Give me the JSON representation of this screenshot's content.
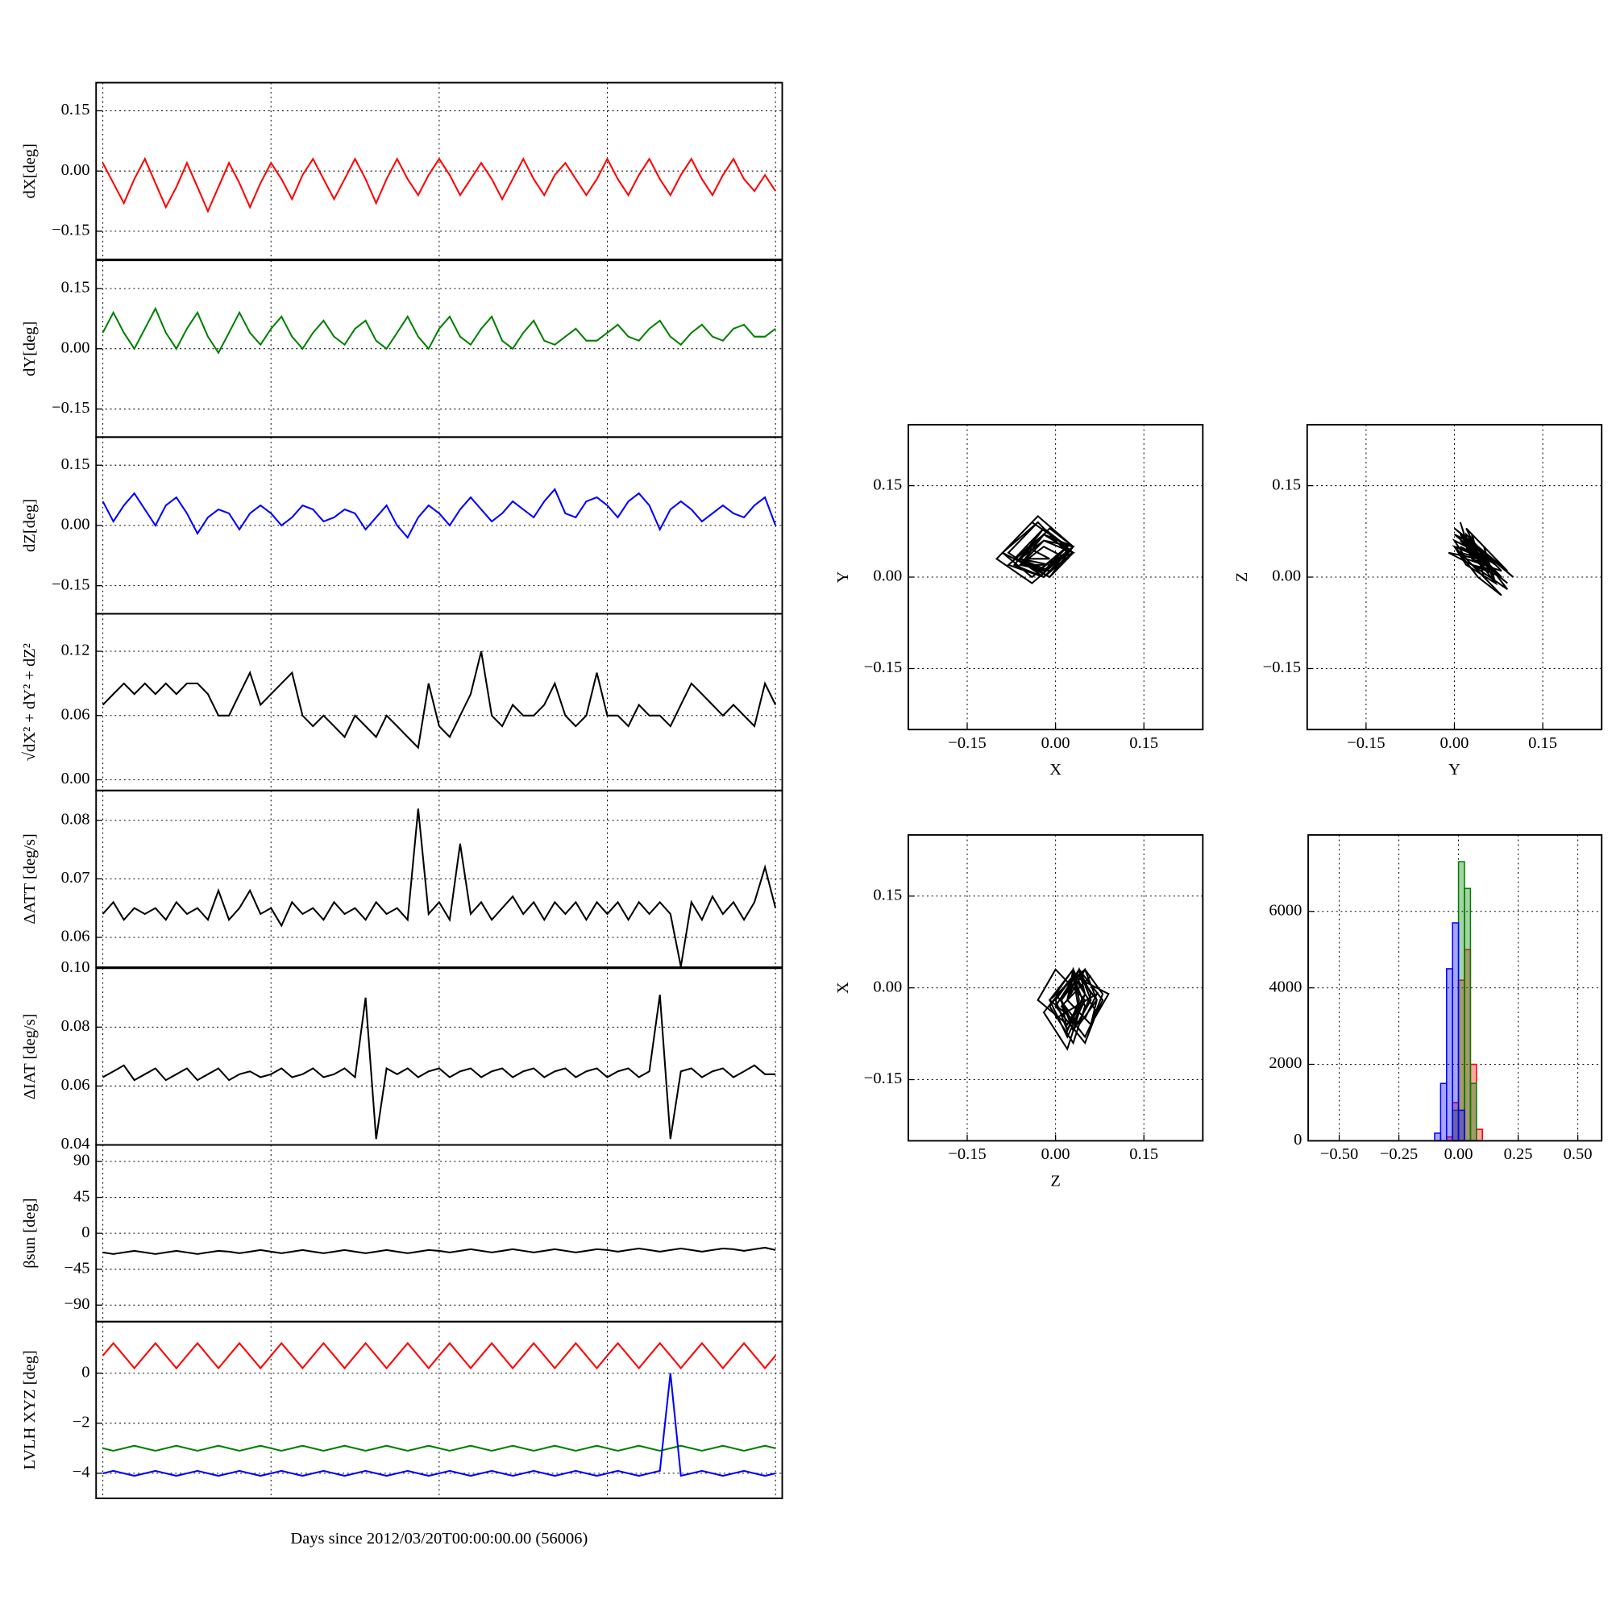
{
  "chart_data": [
    {
      "type": "line",
      "ylabel": "dX[deg]",
      "ylim": [
        -0.22,
        0.22
      ],
      "yticks": [
        0.15,
        {
          "value": 0,
          "label": "0.00"
        },
        {
          "value": -0.15,
          "label": "−0.15"
        }
      ],
      "grid": true,
      "xlim": [
        -0.04,
        4.04
      ],
      "xgrid": [
        0,
        1,
        2,
        3,
        4
      ],
      "x": [
        0,
        0.0625,
        0.125,
        0.1875,
        0.25,
        0.3125,
        0.375,
        0.4375,
        0.5,
        0.5625,
        0.625,
        0.6875,
        0.75,
        0.8125,
        0.875,
        0.9375,
        1,
        1.0625,
        1.125,
        1.1875,
        1.25,
        1.3125,
        1.375,
        1.4375,
        1.5,
        1.5625,
        1.625,
        1.6875,
        1.75,
        1.8125,
        1.875,
        1.9375,
        2,
        2.0625,
        2.125,
        2.1875,
        2.25,
        2.3125,
        2.375,
        2.4375,
        2.5,
        2.5625,
        2.625,
        2.6875,
        2.75,
        2.8125,
        2.875,
        2.9375,
        3,
        3.0625,
        3.125,
        3.1875,
        3.25,
        3.3125,
        3.375,
        3.4375,
        3.5,
        3.5625,
        3.625,
        3.6875,
        3.75,
        3.8125,
        3.875,
        3.9375,
        4
      ],
      "series": [
        {
          "color": "#ff0000",
          "values": [
            0.02,
            -0.03,
            -0.08,
            -0.02,
            0.03,
            -0.03,
            -0.09,
            -0.04,
            0.02,
            -0.04,
            -0.1,
            -0.04,
            0.02,
            -0.03,
            -0.09,
            -0.03,
            0.02,
            -0.02,
            -0.07,
            -0.01,
            0.03,
            -0.02,
            -0.07,
            -0.02,
            0.03,
            -0.02,
            -0.08,
            -0.02,
            0.03,
            -0.02,
            -0.06,
            -0.01,
            0.03,
            -0.01,
            -0.06,
            -0.02,
            0.02,
            -0.02,
            -0.07,
            -0.02,
            0.03,
            -0.02,
            -0.06,
            -0.01,
            0.02,
            -0.02,
            -0.06,
            -0.02,
            0.03,
            -0.02,
            -0.06,
            -0.01,
            0.03,
            -0.02,
            -0.06,
            -0.01,
            0.03,
            -0.02,
            -0.06,
            -0.01,
            0.03,
            -0.02,
            -0.05,
            -0.01,
            -0.05
          ]
        }
      ]
    },
    {
      "type": "line",
      "ylabel": "dY[deg]",
      "ylim": [
        -0.22,
        0.22
      ],
      "yticks": [
        0.15,
        {
          "value": 0,
          "label": "0.00"
        },
        {
          "value": -0.15,
          "label": "−0.15"
        }
      ],
      "grid": true,
      "series": [
        {
          "color": "#008000",
          "values": [
            0.04,
            0.09,
            0.04,
            0.0,
            0.05,
            0.1,
            0.04,
            0.0,
            0.05,
            0.09,
            0.03,
            -0.01,
            0.04,
            0.09,
            0.04,
            0.01,
            0.05,
            0.08,
            0.03,
            0.0,
            0.04,
            0.07,
            0.03,
            0.01,
            0.05,
            0.07,
            0.02,
            0.0,
            0.04,
            0.08,
            0.03,
            0.0,
            0.05,
            0.08,
            0.03,
            0.01,
            0.05,
            0.08,
            0.02,
            0.0,
            0.04,
            0.07,
            0.02,
            0.01,
            0.03,
            0.05,
            0.02,
            0.02,
            0.04,
            0.06,
            0.03,
            0.02,
            0.05,
            0.07,
            0.03,
            0.01,
            0.04,
            0.06,
            0.03,
            0.02,
            0.05,
            0.06,
            0.03,
            0.03,
            0.05
          ]
        }
      ]
    },
    {
      "type": "line",
      "ylabel": "dZ[deg]",
      "ylim": [
        -0.22,
        0.22
      ],
      "yticks": [
        0.15,
        {
          "value": 0,
          "label": "0.00"
        },
        {
          "value": -0.15,
          "label": "−0.15"
        }
      ],
      "grid": true,
      "series": [
        {
          "color": "#0000ff",
          "values": [
            0.06,
            0.01,
            0.05,
            0.08,
            0.04,
            0.0,
            0.05,
            0.07,
            0.03,
            -0.02,
            0.02,
            0.04,
            0.03,
            -0.01,
            0.03,
            0.05,
            0.03,
            0.0,
            0.02,
            0.05,
            0.04,
            0.01,
            0.02,
            0.04,
            0.03,
            -0.01,
            0.02,
            0.05,
            0.0,
            -0.03,
            0.02,
            0.05,
            0.03,
            0.0,
            0.04,
            0.07,
            0.04,
            0.01,
            0.03,
            0.06,
            0.04,
            0.02,
            0.06,
            0.09,
            0.03,
            0.02,
            0.06,
            0.07,
            0.05,
            0.02,
            0.06,
            0.08,
            0.05,
            -0.01,
            0.04,
            0.06,
            0.04,
            0.01,
            0.03,
            0.05,
            0.03,
            0.02,
            0.05,
            0.07,
            0.0
          ]
        }
      ]
    },
    {
      "type": "line",
      "ylabel": "√dX² + dY² + dZ²",
      "ylim": [
        -0.01,
        0.155
      ],
      "yticks": [
        0.12,
        0.06,
        {
          "value": 0,
          "label": "0.00"
        }
      ],
      "grid": true,
      "series": [
        {
          "color": "#000000",
          "values": [
            0.07,
            0.08,
            0.09,
            0.08,
            0.09,
            0.08,
            0.09,
            0.08,
            0.09,
            0.09,
            0.08,
            0.06,
            0.06,
            0.08,
            0.1,
            0.07,
            0.08,
            0.09,
            0.1,
            0.06,
            0.05,
            0.06,
            0.05,
            0.04,
            0.06,
            0.05,
            0.04,
            0.06,
            0.05,
            0.04,
            0.03,
            0.09,
            0.05,
            0.04,
            0.06,
            0.08,
            0.12,
            0.06,
            0.05,
            0.07,
            0.06,
            0.06,
            0.07,
            0.09,
            0.06,
            0.05,
            0.06,
            0.1,
            0.06,
            0.06,
            0.05,
            0.07,
            0.06,
            0.06,
            0.05,
            0.07,
            0.09,
            0.08,
            0.07,
            0.06,
            0.07,
            0.06,
            0.05,
            0.09,
            0.07
          ]
        }
      ]
    },
    {
      "type": "line",
      "ylabel": "ΔATT [deg/s]",
      "ylim": [
        0.0549,
        0.0851
      ],
      "yticks": [
        0.08,
        0.07,
        0.06
      ],
      "grid": true,
      "series": [
        {
          "color": "#000000",
          "values": [
            0.064,
            0.066,
            0.063,
            0.065,
            0.064,
            0.065,
            0.063,
            0.066,
            0.064,
            0.065,
            0.063,
            0.068,
            0.063,
            0.065,
            0.068,
            0.064,
            0.065,
            0.062,
            0.066,
            0.064,
            0.065,
            0.063,
            0.066,
            0.064,
            0.065,
            0.063,
            0.066,
            0.064,
            0.065,
            0.063,
            0.082,
            0.064,
            0.066,
            0.063,
            0.076,
            0.064,
            0.066,
            0.063,
            0.065,
            0.067,
            0.064,
            0.066,
            0.063,
            0.066,
            0.064,
            0.066,
            0.063,
            0.066,
            0.064,
            0.066,
            0.063,
            0.066,
            0.064,
            0.066,
            0.064,
            0.055,
            0.066,
            0.063,
            0.067,
            0.064,
            0.066,
            0.063,
            0.066,
            0.072,
            0.065
          ]
        }
      ]
    },
    {
      "type": "line",
      "ylabel": "ΔIAT [deg/s]",
      "ylim": [
        0.04,
        0.1
      ],
      "yticks": [
        {
          "value": 0.1,
          "label": "0.10"
        },
        0.08,
        0.06,
        0.04
      ],
      "grid": true,
      "series": [
        {
          "color": "#000000",
          "values": [
            0.063,
            0.065,
            0.067,
            0.062,
            0.064,
            0.066,
            0.062,
            0.064,
            0.066,
            0.062,
            0.064,
            0.066,
            0.062,
            0.064,
            0.065,
            0.063,
            0.064,
            0.066,
            0.063,
            0.064,
            0.066,
            0.063,
            0.064,
            0.066,
            0.063,
            0.09,
            0.042,
            0.066,
            0.064,
            0.066,
            0.063,
            0.065,
            0.066,
            0.063,
            0.065,
            0.066,
            0.063,
            0.065,
            0.066,
            0.063,
            0.065,
            0.066,
            0.063,
            0.065,
            0.066,
            0.063,
            0.065,
            0.066,
            0.063,
            0.065,
            0.066,
            0.063,
            0.065,
            0.091,
            0.042,
            0.065,
            0.066,
            0.063,
            0.065,
            0.066,
            0.063,
            0.065,
            0.067,
            0.064,
            0.064
          ]
        }
      ]
    },
    {
      "type": "line",
      "ylabel": "βsun [deg]",
      "ylim": [
        -110.7,
        110.7
      ],
      "yticks": [
        90,
        45,
        0,
        {
          "value": -45,
          "label": "−45"
        },
        {
          "value": -90,
          "label": "−90"
        }
      ],
      "grid": true,
      "series": [
        {
          "color": "#000000",
          "values": [
            -24,
            -26,
            -24,
            -22,
            -24,
            -26,
            -24,
            -22,
            -24,
            -26,
            -24,
            -22,
            -23,
            -25,
            -23,
            -21,
            -23,
            -25,
            -23,
            -21,
            -23,
            -25,
            -23,
            -21,
            -23,
            -25,
            -23,
            -21,
            -23,
            -25,
            -23,
            -21,
            -22,
            -24,
            -22,
            -20,
            -22,
            -24,
            -22,
            -20,
            -22,
            -24,
            -22,
            -20,
            -22,
            -24,
            -22,
            -20,
            -21,
            -23,
            -21,
            -19,
            -21,
            -23,
            -21,
            -19,
            -21,
            -23,
            -21,
            -19,
            -20,
            -22,
            -20,
            -18,
            -21
          ]
        }
      ]
    },
    {
      "type": "line",
      "ylabel": "LVLH XYZ [deg]",
      "xlabel": "Days since 2012/03/20T00:00:00.00 (56006)",
      "ylim": [
        -5,
        2.06
      ],
      "yticks": [
        0,
        {
          "value": -2,
          "label": "−2"
        },
        {
          "value": -4,
          "label": "−4"
        }
      ],
      "grid": true,
      "series": [
        {
          "color": "#ff0000",
          "values": [
            0.7,
            1.2,
            0.7,
            0.2,
            0.7,
            1.2,
            0.7,
            0.2,
            0.7,
            1.2,
            0.7,
            0.2,
            0.7,
            1.2,
            0.7,
            0.2,
            0.7,
            1.2,
            0.7,
            0.2,
            0.7,
            1.2,
            0.7,
            0.2,
            0.7,
            1.2,
            0.7,
            0.2,
            0.7,
            1.2,
            0.7,
            0.2,
            0.7,
            1.2,
            0.7,
            0.2,
            0.7,
            1.2,
            0.7,
            0.2,
            0.7,
            1.2,
            0.7,
            0.2,
            0.7,
            1.2,
            0.7,
            0.2,
            0.7,
            1.2,
            0.7,
            0.2,
            0.7,
            1.2,
            0.7,
            0.2,
            0.7,
            1.2,
            0.7,
            0.2,
            0.7,
            1.2,
            0.7,
            0.2,
            0.7
          ]
        },
        {
          "color": "#008000",
          "values": [
            -3,
            -3.1,
            -3,
            -2.9,
            -3,
            -3.1,
            -3,
            -2.9,
            -3,
            -3.1,
            -3,
            -2.9,
            -3,
            -3.1,
            -3,
            -2.9,
            -3,
            -3.1,
            -3,
            -2.9,
            -3,
            -3.1,
            -3,
            -2.9,
            -3,
            -3.1,
            -3,
            -2.9,
            -3,
            -3.1,
            -3,
            -2.9,
            -3,
            -3.1,
            -3,
            -2.9,
            -3,
            -3.1,
            -3,
            -2.9,
            -3,
            -3.1,
            -3,
            -2.9,
            -3,
            -3.1,
            -3,
            -2.9,
            -3,
            -3.1,
            -3,
            -2.9,
            -3,
            -3.1,
            -3,
            -2.9,
            -3,
            -3.1,
            -3,
            -2.9,
            -3,
            -3.1,
            -3,
            -2.9,
            -3
          ]
        },
        {
          "color": "#0000ff",
          "values": [
            -4,
            -3.9,
            -4,
            -4.1,
            -4,
            -3.9,
            -4,
            -4.1,
            -4,
            -3.9,
            -4,
            -4.1,
            -4,
            -3.9,
            -4,
            -4.1,
            -4,
            -3.9,
            -4,
            -4.1,
            -4,
            -3.9,
            -4,
            -4.1,
            -4,
            -3.9,
            -4,
            -4.1,
            -4,
            -3.9,
            -4,
            -4.1,
            -4,
            -3.9,
            -4,
            -4.1,
            -4,
            -3.9,
            -4,
            -4.1,
            -4,
            -3.9,
            -4,
            -4.1,
            -4,
            -3.9,
            -4,
            -4.1,
            -4,
            -3.9,
            -4,
            -4.1,
            -4,
            -3.9,
            0,
            -4.1,
            -4,
            -3.9,
            -4,
            -4.1,
            -4,
            -3.9,
            -4,
            -4.1,
            -4
          ]
        }
      ]
    },
    {
      "type": "scatter",
      "xlabel": "X",
      "ylabel": "Y",
      "xlim": [
        -0.25,
        0.25
      ],
      "ylim": [
        -0.25,
        0.25
      ],
      "color": "#000000",
      "grid": true,
      "xticks": [
        {
          "value": -0.15,
          "label": "−0.15"
        },
        {
          "value": 0,
          "label": "0.00"
        },
        0.15
      ],
      "yticks": [
        0.15,
        {
          "value": 0,
          "label": "0.00"
        },
        {
          "value": -0.15,
          "label": "−0.15"
        }
      ]
    },
    {
      "type": "scatter",
      "xlabel": "Y",
      "ylabel": "Z",
      "xlim": [
        -0.25,
        0.25
      ],
      "ylim": [
        -0.25,
        0.25
      ],
      "color": "#000000",
      "grid": true,
      "xticks": [
        {
          "value": -0.15,
          "label": "−0.15"
        },
        {
          "value": 0,
          "label": "0.00"
        },
        0.15
      ],
      "yticks": [
        0.15,
        {
          "value": 0,
          "label": "0.00"
        },
        {
          "value": -0.15,
          "label": "−0.15"
        }
      ]
    },
    {
      "type": "scatter",
      "xlabel": "Z",
      "ylabel": "X",
      "xlim": [
        -0.25,
        0.25
      ],
      "ylim": [
        -0.25,
        0.25
      ],
      "color": "#000000",
      "grid": true,
      "xticks": [
        {
          "value": -0.15,
          "label": "−0.15"
        },
        {
          "value": 0,
          "label": "0.00"
        },
        0.15
      ],
      "yticks": [
        0.15,
        {
          "value": 0,
          "label": "0.00"
        },
        {
          "value": -0.15,
          "label": "−0.15"
        }
      ]
    },
    {
      "type": "histogram",
      "xlim": [
        -0.63,
        0.6
      ],
      "ylim": [
        0,
        8000
      ],
      "grid": true,
      "xticks": [
        {
          "value": -0.5,
          "label": "−0.50"
        },
        {
          "value": -0.25,
          "label": "−0.25"
        },
        {
          "value": 0,
          "label": "0.00"
        },
        0.25,
        {
          "value": 0.5,
          "label": "0.50"
        }
      ],
      "yticks": [
        0,
        2000,
        4000,
        6000
      ],
      "bins": [
        -0.125,
        -0.1,
        -0.075,
        -0.05,
        -0.025,
        0,
        0.025,
        0.05,
        0.075,
        0.1,
        0.125
      ],
      "series": [
        {
          "color": "#ff0000",
          "values": [
            0,
            0,
            0,
            100,
            1000,
            4200,
            5000,
            2000,
            300,
            0
          ]
        },
        {
          "color": "#008000",
          "values": [
            0,
            0,
            0,
            0,
            800,
            7300,
            6600,
            1500,
            0,
            0
          ]
        },
        {
          "color": "#0000ff",
          "values": [
            0,
            200,
            1500,
            4500,
            5700,
            800,
            0,
            0,
            0,
            0
          ]
        }
      ]
    }
  ]
}
